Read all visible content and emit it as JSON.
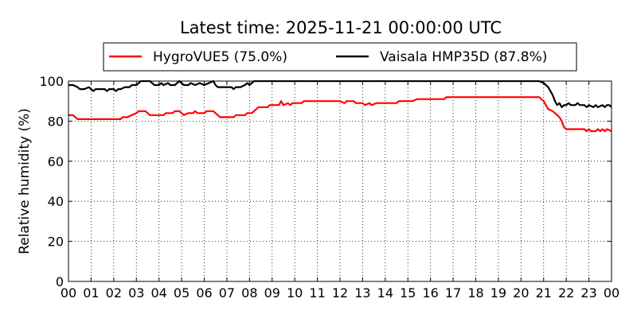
{
  "chart_data": {
    "type": "line",
    "title": "Latest time: 2025-11-21 00:00:00 UTC",
    "xlabel": "",
    "ylabel": "Relative humidity (%)",
    "xlim": [
      0,
      24
    ],
    "ylim": [
      0,
      100
    ],
    "x_tick_labels": [
      "00",
      "01",
      "02",
      "03",
      "04",
      "05",
      "06",
      "07",
      "08",
      "09",
      "10",
      "11",
      "12",
      "13",
      "14",
      "15",
      "16",
      "17",
      "18",
      "19",
      "20",
      "21",
      "22",
      "23",
      "00"
    ],
    "y_ticks": [
      0,
      20,
      40,
      60,
      80,
      100
    ],
    "grid": true,
    "legend_position": "top",
    "series": [
      {
        "name": "HygroVUE5 (75.0%)",
        "color": "#ff0000",
        "points": [
          [
            0.0,
            83
          ],
          [
            0.2,
            83
          ],
          [
            0.3,
            82
          ],
          [
            0.4,
            81
          ],
          [
            1.0,
            81
          ],
          [
            2.0,
            81
          ],
          [
            2.3,
            81
          ],
          [
            2.4,
            82
          ],
          [
            2.6,
            82
          ],
          [
            2.8,
            83
          ],
          [
            3.0,
            84
          ],
          [
            3.1,
            85
          ],
          [
            3.4,
            85
          ],
          [
            3.5,
            84
          ],
          [
            3.6,
            83
          ],
          [
            4.0,
            83
          ],
          [
            4.2,
            83
          ],
          [
            4.3,
            84
          ],
          [
            4.5,
            84
          ],
          [
            4.6,
            84
          ],
          [
            4.7,
            85
          ],
          [
            4.9,
            85
          ],
          [
            5.0,
            84
          ],
          [
            5.1,
            83
          ],
          [
            5.3,
            84
          ],
          [
            5.5,
            84
          ],
          [
            5.6,
            85
          ],
          [
            5.7,
            84
          ],
          [
            6.0,
            84
          ],
          [
            6.1,
            85
          ],
          [
            6.4,
            85
          ],
          [
            6.5,
            84
          ],
          [
            6.6,
            83
          ],
          [
            6.7,
            82
          ],
          [
            7.0,
            82
          ],
          [
            7.3,
            82
          ],
          [
            7.4,
            83
          ],
          [
            7.8,
            83
          ],
          [
            7.9,
            84
          ],
          [
            8.1,
            84
          ],
          [
            8.2,
            85
          ],
          [
            8.3,
            86
          ],
          [
            8.4,
            87
          ],
          [
            8.8,
            87
          ],
          [
            8.9,
            88
          ],
          [
            9.3,
            88
          ],
          [
            9.4,
            90
          ],
          [
            9.5,
            88
          ],
          [
            9.7,
            89
          ],
          [
            9.8,
            88
          ],
          [
            9.9,
            89
          ],
          [
            10.3,
            89
          ],
          [
            10.4,
            90
          ],
          [
            12.0,
            90
          ],
          [
            12.2,
            89
          ],
          [
            12.3,
            90
          ],
          [
            12.6,
            90
          ],
          [
            12.7,
            89
          ],
          [
            13.0,
            89
          ],
          [
            13.1,
            88
          ],
          [
            13.3,
            89
          ],
          [
            13.4,
            88
          ],
          [
            13.6,
            89
          ],
          [
            14.0,
            89
          ],
          [
            14.5,
            89
          ],
          [
            14.6,
            90
          ],
          [
            15.0,
            90
          ],
          [
            15.2,
            90
          ],
          [
            15.4,
            91
          ],
          [
            16.0,
            91
          ],
          [
            16.6,
            91
          ],
          [
            16.7,
            92
          ],
          [
            17.0,
            92
          ],
          [
            18.0,
            92
          ],
          [
            19.0,
            92
          ],
          [
            20.0,
            92
          ],
          [
            20.8,
            92
          ],
          [
            20.9,
            91
          ],
          [
            21.0,
            90
          ],
          [
            21.1,
            88
          ],
          [
            21.2,
            86
          ],
          [
            21.4,
            85
          ],
          [
            21.5,
            84
          ],
          [
            21.7,
            82
          ],
          [
            21.8,
            80
          ],
          [
            21.9,
            77
          ],
          [
            22.0,
            76
          ],
          [
            22.5,
            76
          ],
          [
            22.8,
            76
          ],
          [
            22.9,
            75
          ],
          [
            23.0,
            76
          ],
          [
            23.1,
            75
          ],
          [
            23.3,
            75
          ],
          [
            23.4,
            76
          ],
          [
            23.5,
            75
          ],
          [
            23.6,
            76
          ],
          [
            23.7,
            75
          ],
          [
            23.8,
            76
          ],
          [
            24.0,
            75
          ]
        ]
      },
      {
        "name": "Vaisala HMP35D (87.8%)",
        "color": "#000000",
        "points": [
          [
            0.0,
            98
          ],
          [
            0.2,
            98
          ],
          [
            0.4,
            97
          ],
          [
            0.5,
            96
          ],
          [
            0.7,
            96
          ],
          [
            0.9,
            97
          ],
          [
            1.0,
            96
          ],
          [
            1.1,
            95
          ],
          [
            1.2,
            96
          ],
          [
            1.4,
            96
          ],
          [
            1.6,
            96
          ],
          [
            1.7,
            95
          ],
          [
            1.8,
            96
          ],
          [
            1.9,
            96
          ],
          [
            2.0,
            96
          ],
          [
            2.1,
            95
          ],
          [
            2.2,
            96
          ],
          [
            2.3,
            96
          ],
          [
            2.5,
            97
          ],
          [
            2.6,
            97
          ],
          [
            2.7,
            97
          ],
          [
            2.8,
            98
          ],
          [
            3.0,
            98
          ],
          [
            3.1,
            99
          ],
          [
            3.2,
            100
          ],
          [
            3.6,
            100
          ],
          [
            3.7,
            99
          ],
          [
            3.8,
            98
          ],
          [
            4.0,
            98
          ],
          [
            4.1,
            99
          ],
          [
            4.2,
            98
          ],
          [
            4.4,
            99
          ],
          [
            4.5,
            98
          ],
          [
            4.7,
            98
          ],
          [
            4.8,
            99
          ],
          [
            4.9,
            100
          ],
          [
            5.0,
            99
          ],
          [
            5.1,
            98
          ],
          [
            5.3,
            98
          ],
          [
            5.4,
            99
          ],
          [
            5.6,
            98
          ],
          [
            5.8,
            99
          ],
          [
            6.0,
            98
          ],
          [
            6.2,
            99
          ],
          [
            6.4,
            100
          ],
          [
            6.5,
            98
          ],
          [
            6.6,
            97
          ],
          [
            6.8,
            97
          ],
          [
            7.0,
            97
          ],
          [
            7.2,
            97
          ],
          [
            7.3,
            96
          ],
          [
            7.4,
            97
          ],
          [
            7.6,
            97
          ],
          [
            7.8,
            98
          ],
          [
            7.9,
            99
          ],
          [
            8.0,
            98
          ],
          [
            8.1,
            99
          ],
          [
            8.2,
            100
          ],
          [
            20.8,
            100
          ],
          [
            21.0,
            99
          ],
          [
            21.1,
            98
          ],
          [
            21.2,
            97
          ],
          [
            21.3,
            95
          ],
          [
            21.4,
            93
          ],
          [
            21.5,
            90
          ],
          [
            21.6,
            88
          ],
          [
            21.7,
            89
          ],
          [
            21.8,
            87
          ],
          [
            21.9,
            88
          ],
          [
            22.0,
            88
          ],
          [
            22.1,
            89
          ],
          [
            22.2,
            88
          ],
          [
            22.4,
            88
          ],
          [
            22.5,
            89
          ],
          [
            22.6,
            88
          ],
          [
            22.8,
            88
          ],
          [
            22.9,
            87
          ],
          [
            23.0,
            88
          ],
          [
            23.2,
            87
          ],
          [
            23.3,
            88
          ],
          [
            23.4,
            87
          ],
          [
            23.6,
            88
          ],
          [
            23.7,
            87
          ],
          [
            23.8,
            88
          ],
          [
            23.9,
            88
          ],
          [
            24.0,
            87
          ]
        ]
      }
    ]
  }
}
